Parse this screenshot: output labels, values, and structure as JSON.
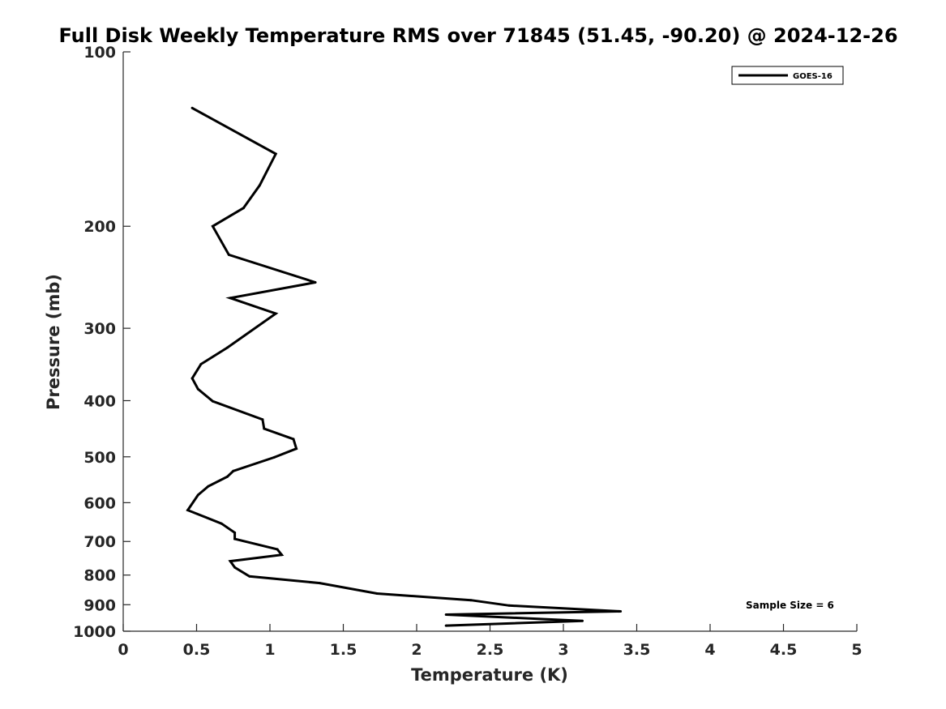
{
  "chart_data": {
    "type": "line",
    "title": "Full Disk Weekly Temperature RMS over 71845 (51.45, -90.20) @ 2024-12-26",
    "xlabel": "Temperature (K)",
    "ylabel": "Pressure (mb)",
    "xlim": [
      0,
      5
    ],
    "ylim": [
      100,
      1000
    ],
    "y_scale": "log",
    "y_reversed": true,
    "x_ticks": [
      0,
      0.5,
      1,
      1.5,
      2,
      2.5,
      3,
      3.5,
      4,
      4.5,
      5
    ],
    "x_tick_labels": [
      "0",
      "0.5",
      "1",
      "1.5",
      "2",
      "2.5",
      "3",
      "3.5",
      "4",
      "4.5",
      "5"
    ],
    "y_ticks": [
      100,
      200,
      300,
      400,
      500,
      600,
      700,
      800,
      900,
      1000
    ],
    "y_tick_labels": [
      "100",
      "200",
      "300",
      "400",
      "500",
      "600",
      "700",
      "800",
      "900",
      "1000"
    ],
    "grid": false,
    "legend_position": "top-right",
    "annotation": "Sample Size = 6",
    "series": [
      {
        "name": "GOES-16",
        "color": "#000000",
        "points": [
          [
            0.47,
            125
          ],
          [
            1.04,
            150
          ],
          [
            0.93,
            170
          ],
          [
            0.82,
            186
          ],
          [
            0.61,
            200
          ],
          [
            0.72,
            224
          ],
          [
            1.31,
            250
          ],
          [
            0.73,
            266
          ],
          [
            1.04,
            283
          ],
          [
            0.71,
            324
          ],
          [
            0.53,
            346
          ],
          [
            0.47,
            366
          ],
          [
            0.51,
            382
          ],
          [
            0.61,
            401
          ],
          [
            0.95,
            431
          ],
          [
            0.96,
            447
          ],
          [
            1.16,
            466
          ],
          [
            1.18,
            484
          ],
          [
            1.03,
            501
          ],
          [
            0.75,
            529
          ],
          [
            0.71,
            541
          ],
          [
            0.58,
            562
          ],
          [
            0.51,
            582
          ],
          [
            0.44,
            618
          ],
          [
            0.67,
            652
          ],
          [
            0.76,
            676
          ],
          [
            0.76,
            693
          ],
          [
            1.05,
            722
          ],
          [
            1.08,
            738
          ],
          [
            0.73,
            757
          ],
          [
            0.76,
            776
          ],
          [
            0.86,
            804
          ],
          [
            1.34,
            826
          ],
          [
            1.73,
            861
          ],
          [
            2.37,
            884
          ],
          [
            2.63,
            903
          ],
          [
            3.39,
            924
          ],
          [
            2.2,
            936
          ],
          [
            3.13,
            960
          ],
          [
            2.2,
            978
          ]
        ]
      }
    ]
  }
}
